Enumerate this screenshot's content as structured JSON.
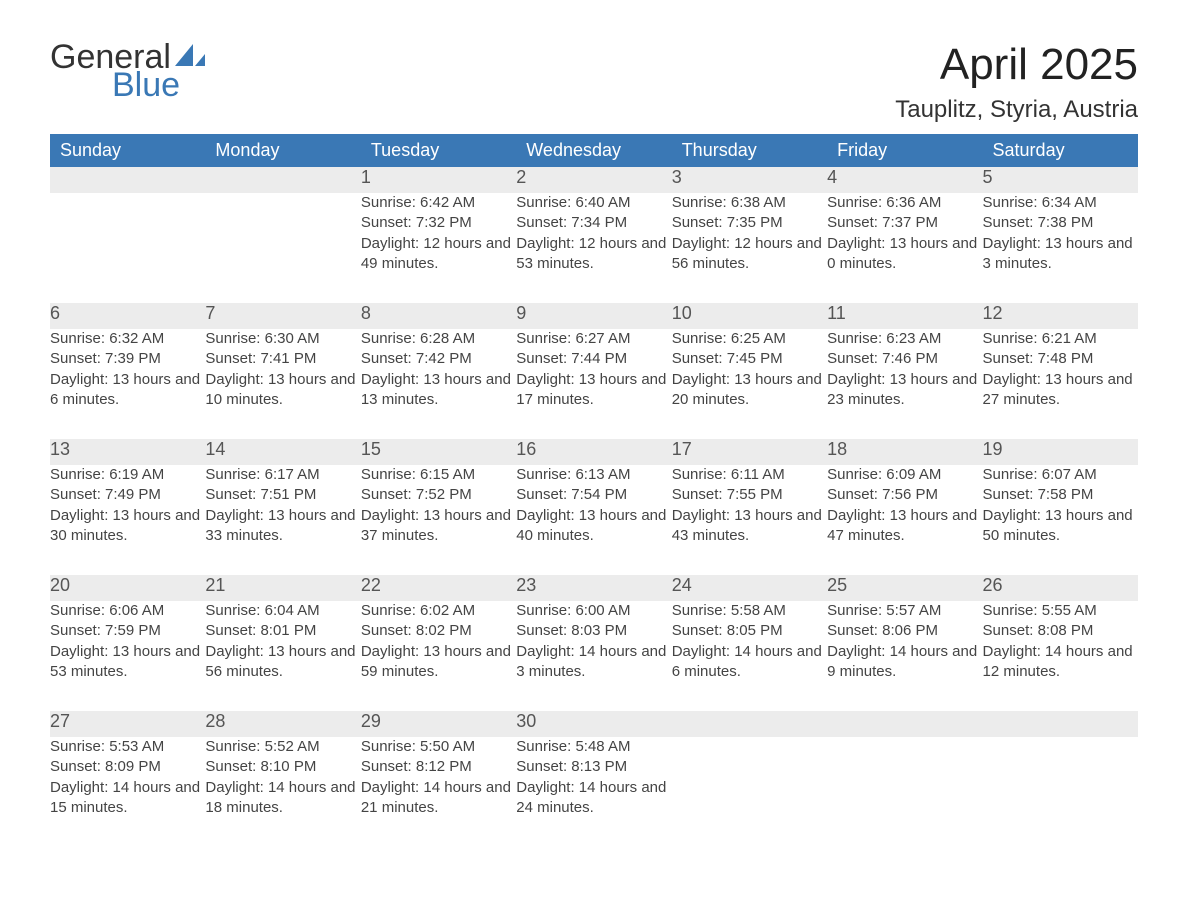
{
  "logo": {
    "text1": "General",
    "text2": "Blue"
  },
  "title": "April 2025",
  "location": "Tauplitz, Styria, Austria",
  "colors": {
    "header_bg": "#3a78b5",
    "header_text": "#ffffff",
    "daynum_bg": "#ececec",
    "row_border": "#3a78b5",
    "logo_blue": "#3a78b5"
  },
  "weekdays": [
    "Sunday",
    "Monday",
    "Tuesday",
    "Wednesday",
    "Thursday",
    "Friday",
    "Saturday"
  ],
  "weeks": [
    [
      null,
      null,
      {
        "n": "1",
        "sr": "6:42 AM",
        "ss": "7:32 PM",
        "dl": "12 hours and 49 minutes."
      },
      {
        "n": "2",
        "sr": "6:40 AM",
        "ss": "7:34 PM",
        "dl": "12 hours and 53 minutes."
      },
      {
        "n": "3",
        "sr": "6:38 AM",
        "ss": "7:35 PM",
        "dl": "12 hours and 56 minutes."
      },
      {
        "n": "4",
        "sr": "6:36 AM",
        "ss": "7:37 PM",
        "dl": "13 hours and 0 minutes."
      },
      {
        "n": "5",
        "sr": "6:34 AM",
        "ss": "7:38 PM",
        "dl": "13 hours and 3 minutes."
      }
    ],
    [
      {
        "n": "6",
        "sr": "6:32 AM",
        "ss": "7:39 PM",
        "dl": "13 hours and 6 minutes."
      },
      {
        "n": "7",
        "sr": "6:30 AM",
        "ss": "7:41 PM",
        "dl": "13 hours and 10 minutes."
      },
      {
        "n": "8",
        "sr": "6:28 AM",
        "ss": "7:42 PM",
        "dl": "13 hours and 13 minutes."
      },
      {
        "n": "9",
        "sr": "6:27 AM",
        "ss": "7:44 PM",
        "dl": "13 hours and 17 minutes."
      },
      {
        "n": "10",
        "sr": "6:25 AM",
        "ss": "7:45 PM",
        "dl": "13 hours and 20 minutes."
      },
      {
        "n": "11",
        "sr": "6:23 AM",
        "ss": "7:46 PM",
        "dl": "13 hours and 23 minutes."
      },
      {
        "n": "12",
        "sr": "6:21 AM",
        "ss": "7:48 PM",
        "dl": "13 hours and 27 minutes."
      }
    ],
    [
      {
        "n": "13",
        "sr": "6:19 AM",
        "ss": "7:49 PM",
        "dl": "13 hours and 30 minutes."
      },
      {
        "n": "14",
        "sr": "6:17 AM",
        "ss": "7:51 PM",
        "dl": "13 hours and 33 minutes."
      },
      {
        "n": "15",
        "sr": "6:15 AM",
        "ss": "7:52 PM",
        "dl": "13 hours and 37 minutes."
      },
      {
        "n": "16",
        "sr": "6:13 AM",
        "ss": "7:54 PM",
        "dl": "13 hours and 40 minutes."
      },
      {
        "n": "17",
        "sr": "6:11 AM",
        "ss": "7:55 PM",
        "dl": "13 hours and 43 minutes."
      },
      {
        "n": "18",
        "sr": "6:09 AM",
        "ss": "7:56 PM",
        "dl": "13 hours and 47 minutes."
      },
      {
        "n": "19",
        "sr": "6:07 AM",
        "ss": "7:58 PM",
        "dl": "13 hours and 50 minutes."
      }
    ],
    [
      {
        "n": "20",
        "sr": "6:06 AM",
        "ss": "7:59 PM",
        "dl": "13 hours and 53 minutes."
      },
      {
        "n": "21",
        "sr": "6:04 AM",
        "ss": "8:01 PM",
        "dl": "13 hours and 56 minutes."
      },
      {
        "n": "22",
        "sr": "6:02 AM",
        "ss": "8:02 PM",
        "dl": "13 hours and 59 minutes."
      },
      {
        "n": "23",
        "sr": "6:00 AM",
        "ss": "8:03 PM",
        "dl": "14 hours and 3 minutes."
      },
      {
        "n": "24",
        "sr": "5:58 AM",
        "ss": "8:05 PM",
        "dl": "14 hours and 6 minutes."
      },
      {
        "n": "25",
        "sr": "5:57 AM",
        "ss": "8:06 PM",
        "dl": "14 hours and 9 minutes."
      },
      {
        "n": "26",
        "sr": "5:55 AM",
        "ss": "8:08 PM",
        "dl": "14 hours and 12 minutes."
      }
    ],
    [
      {
        "n": "27",
        "sr": "5:53 AM",
        "ss": "8:09 PM",
        "dl": "14 hours and 15 minutes."
      },
      {
        "n": "28",
        "sr": "5:52 AM",
        "ss": "8:10 PM",
        "dl": "14 hours and 18 minutes."
      },
      {
        "n": "29",
        "sr": "5:50 AM",
        "ss": "8:12 PM",
        "dl": "14 hours and 21 minutes."
      },
      {
        "n": "30",
        "sr": "5:48 AM",
        "ss": "8:13 PM",
        "dl": "14 hours and 24 minutes."
      },
      null,
      null,
      null
    ]
  ],
  "labels": {
    "sunrise": "Sunrise: ",
    "sunset": "Sunset: ",
    "daylight": "Daylight: "
  }
}
